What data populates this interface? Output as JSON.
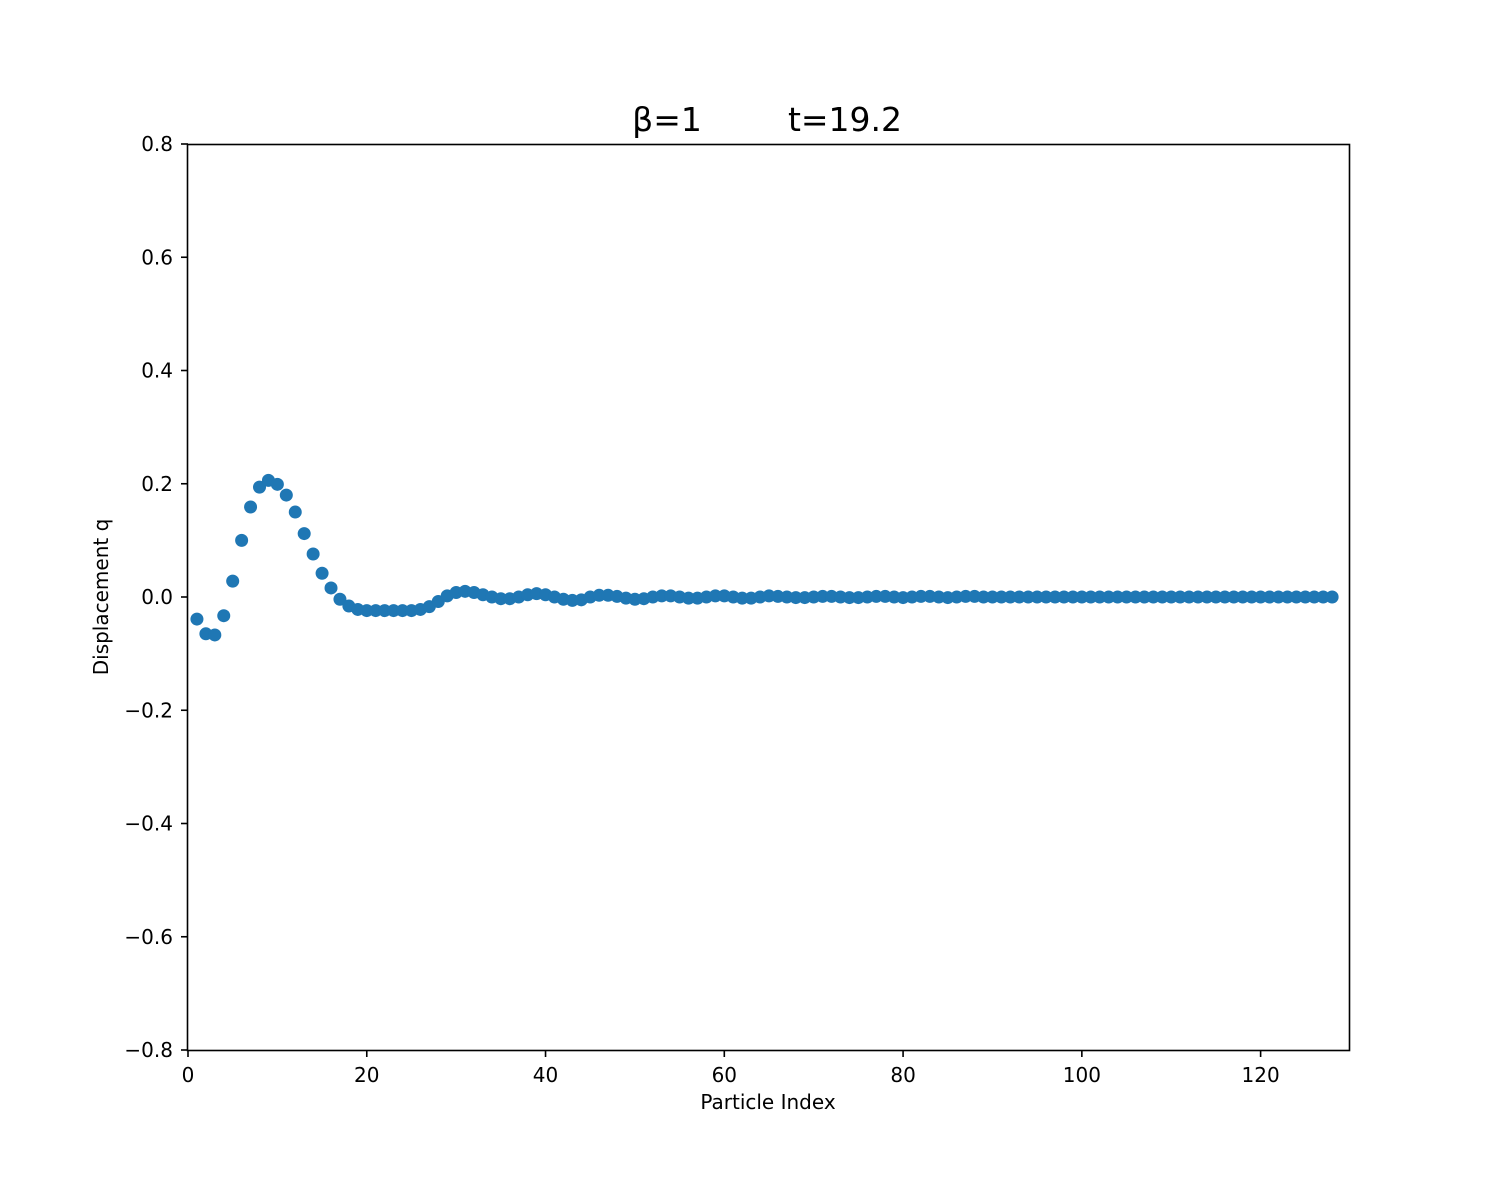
{
  "chart_data": {
    "type": "scatter",
    "title_left": "β=1",
    "title_right": "t=19.2",
    "xlabel": "Particle Index",
    "ylabel": "Displacement q",
    "xlim": [
      0,
      130
    ],
    "ylim": [
      -0.8,
      0.8
    ],
    "xticks": [
      0,
      20,
      40,
      60,
      80,
      100,
      120
    ],
    "yticks": [
      -0.8,
      -0.6,
      -0.4,
      -0.2,
      0.0,
      0.2,
      0.4,
      0.6,
      0.8
    ],
    "xtick_labels": [
      "0",
      "20",
      "40",
      "60",
      "80",
      "100",
      "120"
    ],
    "ytick_labels": [
      "−0.8",
      "−0.6",
      "−0.4",
      "−0.2",
      "0.0",
      "0.2",
      "0.4",
      "0.6",
      "0.8"
    ],
    "grid": false,
    "legend": false,
    "marker_color": "#1f77b4",
    "series": [
      {
        "x": [
          1,
          2,
          3,
          4,
          5,
          6,
          7,
          8,
          9,
          10,
          11,
          12,
          13,
          14,
          15,
          16,
          17,
          18,
          19,
          20,
          21,
          22,
          23,
          24,
          25,
          26,
          27,
          28,
          29,
          30,
          31,
          32,
          33,
          34,
          35,
          36,
          37,
          38,
          39,
          40,
          41,
          42,
          43,
          44,
          45,
          46,
          47,
          48,
          49,
          50,
          51,
          52,
          53,
          54,
          55,
          56,
          57,
          58,
          59,
          60,
          61,
          62,
          63,
          64,
          65,
          66,
          67,
          68,
          69,
          70,
          71,
          72,
          73,
          74,
          75,
          76,
          77,
          78,
          79,
          80,
          81,
          82,
          83,
          84,
          85,
          86,
          87,
          88,
          89,
          90,
          91,
          92,
          93,
          94,
          95,
          96,
          97,
          98,
          99,
          100,
          101,
          102,
          103,
          104,
          105,
          106,
          107,
          108,
          109,
          110,
          111,
          112,
          113,
          114,
          115,
          116,
          117,
          118,
          119,
          120,
          121,
          122,
          123,
          124,
          125,
          126,
          127,
          128
        ],
        "y": [
          -0.039,
          -0.065,
          -0.067,
          -0.033,
          0.028,
          0.1,
          0.159,
          0.194,
          0.206,
          0.199,
          0.18,
          0.15,
          0.112,
          0.076,
          0.042,
          0.016,
          -0.004,
          -0.016,
          -0.022,
          -0.024,
          -0.024,
          -0.024,
          -0.024,
          -0.024,
          -0.024,
          -0.022,
          -0.017,
          -0.008,
          0.002,
          0.008,
          0.01,
          0.008,
          0.004,
          0.0,
          -0.003,
          -0.003,
          0.0,
          0.004,
          0.006,
          0.004,
          0.0,
          -0.004,
          -0.006,
          -0.005,
          0.0,
          0.003,
          0.003,
          0.001,
          -0.002,
          -0.004,
          -0.003,
          0.0,
          0.002,
          0.002,
          0.0,
          -0.002,
          -0.002,
          0.0,
          0.002,
          0.002,
          0.0,
          -0.002,
          -0.002,
          0.0,
          0.002,
          0.001,
          0.0,
          -0.001,
          -0.001,
          0.0,
          0.001,
          0.001,
          0.0,
          -0.001,
          -0.001,
          0.0,
          0.001,
          0.001,
          0.0,
          -0.001,
          0.0,
          0.001,
          0.001,
          0.0,
          -0.001,
          0.0,
          0.001,
          0.001,
          0.0,
          0.0,
          0.0,
          0.0,
          0.0,
          0.0,
          0.0,
          0.0,
          0.0,
          0.0,
          0.0,
          0.0,
          0.0,
          0.0,
          0.0,
          0.0,
          0.0,
          0.0,
          0.0,
          0.0,
          0.0,
          0.0,
          0.0,
          0.0,
          0.0,
          0.0,
          0.0,
          0.0,
          0.0,
          0.0,
          0.0,
          0.0,
          0.0,
          0.0,
          0.0,
          0.0,
          0.0,
          0.0,
          0.0,
          0.0
        ]
      }
    ]
  }
}
